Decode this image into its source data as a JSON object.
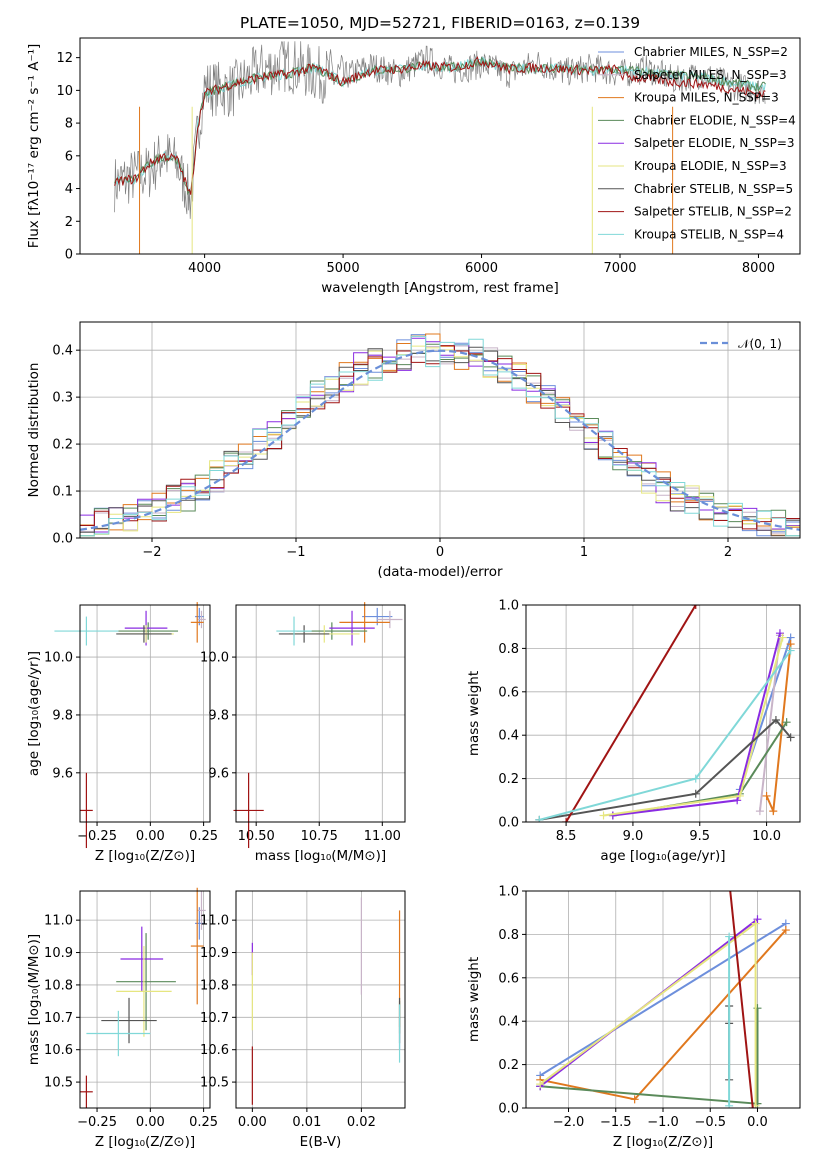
{
  "title": "PLATE=1050, MJD=52721, FIBERID=0163, z=0.139",
  "colors": {
    "chabrier_miles": "#6d8fdc",
    "salpeter_miles": "#c8b4c8",
    "kroupa_miles": "#e0781e",
    "chabrier_elodie": "#5a8a5a",
    "salpeter_elodie": "#8a2be2",
    "kroupa_elodie": "#e6e680",
    "chabrier_stelib": "#555555",
    "salpeter_stelib": "#a01414",
    "kroupa_stelib": "#80d8d8",
    "normal": "#6a8fd8",
    "grid": "#b0b0b0"
  },
  "chart_data": [
    {
      "id": "spectrum",
      "type": "line",
      "title": "PLATE=1050, MJD=52721, FIBERID=0163, z=0.139",
      "xlabel": "wavelength [Angstrom, rest frame]",
      "ylabel": "Flux [fλ10⁻¹⁷ erg cm⁻² s⁻¹ A⁻¹]",
      "xlim": [
        3100,
        8300
      ],
      "ylim": [
        0,
        13.2
      ],
      "xticks": [
        "4000",
        "5000",
        "6000",
        "7000",
        "8000"
      ],
      "yticks": [
        "0",
        "2",
        "4",
        "6",
        "8",
        "10",
        "12"
      ],
      "grid": false,
      "legend_position": "right",
      "legend": [
        "Chabrier MILES, N_SSP=2",
        "Salpeter MILES, N_SSP=3",
        "Kroupa MILES, N_SSP=3",
        "Chabrier ELODIE, N_SSP=4",
        "Salpeter ELODIE, N_SSP=3",
        "Kroupa ELODIE, N_SSP=3",
        "Chabrier STELIB, N_SSP=5",
        "Salpeter STELIB, N_SSP=2",
        "Kroupa STELIB, N_SSP=4"
      ],
      "data": {
        "x": [
          3350,
          3500,
          3600,
          3700,
          3800,
          3900,
          3950,
          4000,
          4200,
          4400,
          4600,
          4800,
          5000,
          5200,
          5400,
          5600,
          5800,
          6000,
          6200,
          6400,
          6600,
          6800,
          7000,
          7200,
          7400,
          7600,
          7800,
          8000
        ],
        "model_y": [
          4.4,
          4.6,
          5.5,
          6.0,
          5.8,
          3.5,
          7.8,
          9.8,
          10.4,
          10.8,
          11.0,
          11.4,
          10.5,
          11.2,
          11.3,
          11.5,
          11.4,
          11.8,
          11.3,
          11.4,
          11.3,
          11.2,
          11.3,
          11.1,
          10.9,
          10.8,
          10.5,
          10.2
        ],
        "observed_y": [
          4.3,
          4.8,
          5.0,
          6.1,
          5.5,
          3.3,
          7.5,
          10.2,
          10.0,
          11.2,
          11.6,
          11.0,
          10.8,
          11.5,
          11.0,
          11.9,
          11.2,
          11.6,
          11.0,
          11.7,
          11.1,
          11.4,
          11.0,
          11.3,
          10.6,
          11.0,
          10.3,
          10.0
        ]
      }
    },
    {
      "id": "residual_hist",
      "type": "line",
      "xlabel": "(data-model)/error",
      "ylabel": "Normed distribution",
      "xlim": [
        -2.5,
        2.5
      ],
      "ylim": [
        0,
        0.46
      ],
      "xticks": [
        "−2",
        "−1",
        "0",
        "1",
        "2"
      ],
      "yticks": [
        "0.0",
        "0.1",
        "0.2",
        "0.3",
        "0.4"
      ],
      "grid": true,
      "legend_position": "top-right",
      "legend": [
        "𝒩(0, 1)"
      ],
      "data": {
        "bin_centers": [
          -2.45,
          -2.35,
          -2.25,
          -2.15,
          -2.05,
          -1.95,
          -1.85,
          -1.75,
          -1.65,
          -1.55,
          -1.45,
          -1.35,
          -1.25,
          -1.15,
          -1.05,
          -0.95,
          -0.85,
          -0.75,
          -0.65,
          -0.55,
          -0.45,
          -0.35,
          -0.25,
          -0.15,
          -0.05,
          0.05,
          0.15,
          0.25,
          0.35,
          0.45,
          0.55,
          0.65,
          0.75,
          0.85,
          0.95,
          1.05,
          1.15,
          1.25,
          1.35,
          1.45,
          1.55,
          1.65,
          1.75,
          1.85,
          1.95,
          2.05,
          2.15,
          2.25,
          2.35,
          2.45
        ],
        "hist_example": [
          0.02,
          0.03,
          0.04,
          0.05,
          0.06,
          0.07,
          0.08,
          0.09,
          0.11,
          0.13,
          0.15,
          0.17,
          0.2,
          0.22,
          0.25,
          0.27,
          0.3,
          0.32,
          0.34,
          0.36,
          0.37,
          0.38,
          0.39,
          0.4,
          0.4,
          0.4,
          0.39,
          0.39,
          0.37,
          0.36,
          0.34,
          0.32,
          0.29,
          0.27,
          0.25,
          0.22,
          0.2,
          0.17,
          0.15,
          0.13,
          0.11,
          0.09,
          0.08,
          0.07,
          0.06,
          0.05,
          0.04,
          0.03,
          0.03,
          0.02
        ]
      }
    },
    {
      "id": "age_vs_Z",
      "type": "scatter",
      "xlabel": "Z [log₁₀(Z/Z⊙)]",
      "ylabel": "age  [log₁₀(age/yr)]",
      "xlim": [
        -0.33,
        0.28
      ],
      "ylim": [
        9.43,
        10.18
      ],
      "xticks": [
        "−0.25",
        "0.00",
        "0.25"
      ],
      "yticks": [
        "9.6",
        "9.8",
        "10.0"
      ],
      "grid": true,
      "data": {
        "points": [
          {
            "series": "Chabrier MILES",
            "x": 0.23,
            "y": 10.14
          },
          {
            "series": "Salpeter MILES",
            "x": 0.24,
            "y": 10.13
          },
          {
            "series": "Kroupa MILES",
            "x": 0.22,
            "y": 10.12
          },
          {
            "series": "Chabrier ELODIE",
            "x": -0.01,
            "y": 10.09
          },
          {
            "series": "Salpeter ELODIE",
            "x": -0.02,
            "y": 10.1
          },
          {
            "series": "Kroupa ELODIE",
            "x": -0.02,
            "y": 10.08
          },
          {
            "series": "Chabrier STELIB",
            "x": -0.03,
            "y": 10.08
          },
          {
            "series": "Salpeter STELIB",
            "x": -0.3,
            "y": 9.47
          },
          {
            "series": "Kroupa STELIB",
            "x": -0.3,
            "y": 10.09
          }
        ]
      }
    },
    {
      "id": "age_vs_mass",
      "type": "scatter",
      "xlabel": "mass [log₁₀(M/M⊙)]",
      "ylabel": "",
      "xlim": [
        10.42,
        11.09
      ],
      "ylim": [
        9.43,
        10.18
      ],
      "xticks": [
        "10.50",
        "10.75",
        "11.00"
      ],
      "yticks": [
        "9.6",
        "9.8",
        "10.0"
      ],
      "grid": true,
      "data": {
        "points": [
          {
            "series": "Chabrier MILES",
            "x": 10.98,
            "y": 10.14
          },
          {
            "series": "Salpeter MILES",
            "x": 11.03,
            "y": 10.13
          },
          {
            "series": "Kroupa MILES",
            "x": 10.93,
            "y": 10.12
          },
          {
            "series": "Chabrier ELODIE",
            "x": 10.8,
            "y": 10.09
          },
          {
            "series": "Salpeter ELODIE",
            "x": 10.88,
            "y": 10.1
          },
          {
            "series": "Kroupa ELODIE",
            "x": 10.77,
            "y": 10.08
          },
          {
            "series": "Chabrier STELIB",
            "x": 10.69,
            "y": 10.08
          },
          {
            "series": "Salpeter STELIB",
            "x": 10.47,
            "y": 9.47
          },
          {
            "series": "Kroupa STELIB",
            "x": 10.65,
            "y": 10.09
          }
        ]
      }
    },
    {
      "id": "weight_vs_age",
      "type": "line",
      "xlabel": "age  [log₁₀(age/yr)]",
      "ylabel": "mass weight",
      "xlim": [
        8.2,
        10.25
      ],
      "ylim": [
        0,
        1.0
      ],
      "xticks": [
        "8.5",
        "9.0",
        "9.5",
        "10.0"
      ],
      "yticks": [
        "0.0",
        "0.2",
        "0.4",
        "0.6",
        "0.8",
        "1.0"
      ],
      "grid": true,
      "series": [
        {
          "key": "chabrier_miles",
          "x": [
            10.18,
            9.8
          ],
          "y": [
            0.85,
            0.15
          ]
        },
        {
          "key": "salpeter_miles",
          "x": [
            9.95,
            10.1
          ],
          "y": [
            0.05,
            0.86
          ]
        },
        {
          "key": "kroupa_miles",
          "x": [
            10.18,
            10.05,
            10.0
          ],
          "y": [
            0.82,
            0.05,
            0.12
          ]
        },
        {
          "key": "chabrier_elodie",
          "x": [
            10.15,
            9.8,
            8.85
          ],
          "y": [
            0.46,
            0.13,
            0.03
          ]
        },
        {
          "key": "salpeter_elodie",
          "x": [
            10.1,
            9.78,
            8.85
          ],
          "y": [
            0.87,
            0.1,
            0.03
          ]
        },
        {
          "key": "kroupa_elodie",
          "x": [
            10.12,
            9.8,
            8.78
          ],
          "y": [
            0.85,
            0.12,
            0.03
          ]
        },
        {
          "key": "chabrier_stelib",
          "x": [
            10.18,
            10.07,
            9.47,
            8.3
          ],
          "y": [
            0.39,
            0.47,
            0.13,
            0.01
          ]
        },
        {
          "key": "salpeter_stelib",
          "x": [
            9.47,
            8.5
          ],
          "y": [
            1.0,
            0.0
          ]
        },
        {
          "key": "kroupa_stelib",
          "x": [
            10.18,
            9.47,
            8.3
          ],
          "y": [
            0.79,
            0.2,
            0.01
          ]
        }
      ]
    },
    {
      "id": "mass_vs_Z",
      "type": "scatter",
      "xlabel": "Z [log₁₀(Z/Z⊙)]",
      "ylabel": "mass [log₁₀(M/M⊙)]",
      "xlim": [
        -0.33,
        0.28
      ],
      "ylim": [
        10.42,
        11.09
      ],
      "xticks": [
        "−0.25",
        "0.00",
        "0.25"
      ],
      "yticks": [
        "10.5",
        "10.6",
        "10.7",
        "10.8",
        "10.9",
        "11.0"
      ],
      "grid": true,
      "data": {
        "points": [
          {
            "series": "Chabrier MILES",
            "x": 0.23,
            "y": 10.99
          },
          {
            "series": "Salpeter MILES",
            "x": 0.24,
            "y": 11.03
          },
          {
            "series": "Kroupa MILES",
            "x": 0.22,
            "y": 10.92
          },
          {
            "series": "Chabrier ELODIE",
            "x": -0.02,
            "y": 10.81
          },
          {
            "series": "Salpeter ELODIE",
            "x": -0.04,
            "y": 10.88
          },
          {
            "series": "Kroupa ELODIE",
            "x": -0.03,
            "y": 10.78
          },
          {
            "series": "Chabrier STELIB",
            "x": -0.1,
            "y": 10.69
          },
          {
            "series": "Salpeter STELIB",
            "x": -0.3,
            "y": 10.47
          },
          {
            "series": "Kroupa STELIB",
            "x": -0.15,
            "y": 10.65
          }
        ]
      }
    },
    {
      "id": "mass_vs_ebv",
      "type": "scatter",
      "xlabel": "E(B-V)",
      "ylabel": "",
      "xlim": [
        -0.003,
        0.028
      ],
      "ylim": [
        10.42,
        11.09
      ],
      "xticks": [
        "0.00",
        "0.01",
        "0.02"
      ],
      "yticks": [
        "10.5",
        "10.6",
        "10.7",
        "10.8",
        "10.9",
        "11.0"
      ],
      "grid": true,
      "data": {
        "points": [
          {
            "series": "Chabrier MILES",
            "x": 0.027,
            "y": 10.65
          },
          {
            "series": "Salpeter MILES",
            "x": 0.02,
            "y": 10.92
          },
          {
            "series": "Kroupa MILES",
            "x": 0.027,
            "y": 10.85
          },
          {
            "series": "Chabrier ELODIE",
            "x": 0.027,
            "y": 10.7
          },
          {
            "series": "Salpeter ELODIE",
            "x": 0.0,
            "y": 10.88
          },
          {
            "series": "Kroupa ELODIE",
            "x": 0.0,
            "y": 10.78
          },
          {
            "series": "Chabrier STELIB",
            "x": 0.027,
            "y": 10.69
          },
          {
            "series": "Salpeter STELIB",
            "x": 0.0,
            "y": 10.52
          },
          {
            "series": "Kroupa STELIB",
            "x": 0.027,
            "y": 10.65
          }
        ]
      }
    },
    {
      "id": "weight_vs_Z",
      "type": "line",
      "xlabel": "Z [log₁₀(Z/Z⊙)]",
      "ylabel": "mass weight",
      "xlim": [
        -2.45,
        0.45
      ],
      "ylim": [
        0,
        1.0
      ],
      "xticks": [
        "−2.0",
        "−1.5",
        "−1.0",
        "−0.5",
        "0.0"
      ],
      "yticks": [
        "0.0",
        "0.2",
        "0.4",
        "0.6",
        "0.8",
        "1.0"
      ],
      "grid": true,
      "series": [
        {
          "key": "chabrier_miles",
          "x": [
            -2.3,
            0.3
          ],
          "y": [
            0.15,
            0.85
          ]
        },
        {
          "key": "kroupa_miles",
          "x": [
            -2.3,
            -1.3,
            0.3
          ],
          "y": [
            0.13,
            0.04,
            0.82
          ]
        },
        {
          "key": "chabrier_elodie",
          "x": [
            -2.3,
            0.0,
            0.0
          ],
          "y": [
            0.1,
            0.02,
            0.46
          ]
        },
        {
          "key": "salpeter_elodie",
          "x": [
            -2.3,
            0.0
          ],
          "y": [
            0.1,
            0.87
          ]
        },
        {
          "key": "kroupa_elodie",
          "x": [
            -2.3,
            -0.02,
            -0.02
          ],
          "y": [
            0.11,
            0.85,
            0.01
          ]
        },
        {
          "key": "chabrier_stelib",
          "x": [
            -0.3,
            -0.3,
            -0.3
          ],
          "y": [
            0.47,
            0.39,
            0.13
          ]
        },
        {
          "key": "salpeter_stelib",
          "x": [
            -0.3,
            -0.05
          ],
          "y": [
            1.05,
            0.0
          ]
        },
        {
          "key": "kroupa_stelib",
          "x": [
            -0.3,
            -0.3
          ],
          "y": [
            0.79,
            0.01
          ]
        }
      ]
    }
  ]
}
